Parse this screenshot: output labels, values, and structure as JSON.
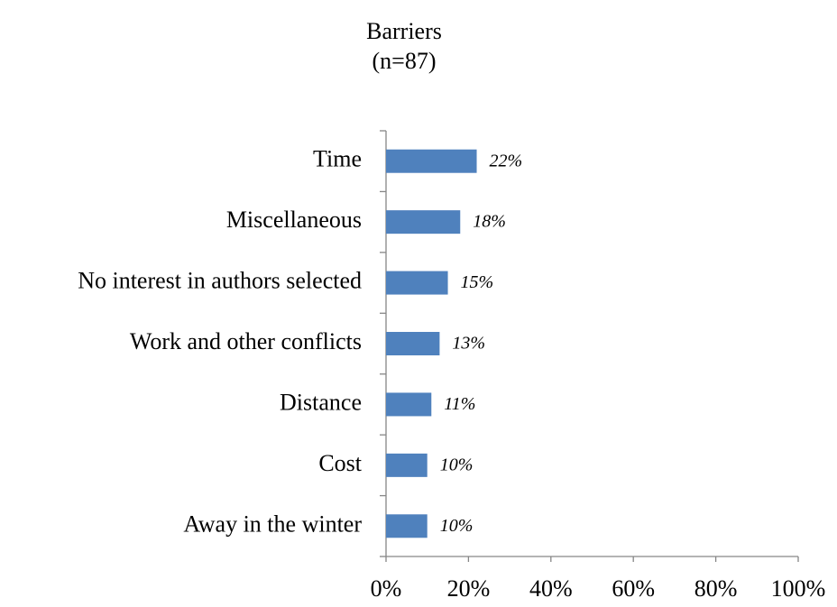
{
  "chart_data": {
    "type": "hbar",
    "title": "Barriers",
    "subtitle": "(n=87)",
    "categories": [
      "Time",
      "Miscellaneous",
      "No interest in authors selected",
      "Work and other conflicts",
      "Distance",
      "Cost",
      "Away in the winter"
    ],
    "values": [
      22,
      18,
      15,
      13,
      11,
      10,
      10
    ],
    "value_labels": [
      "22%",
      "18%",
      "15%",
      "13%",
      "11%",
      "10%",
      "10%"
    ],
    "color": "#4f81bd",
    "xlim": [
      0,
      100
    ],
    "xticks": [
      {
        "value": 0,
        "label": "0%"
      },
      {
        "value": 20,
        "label": "20%"
      },
      {
        "value": 40,
        "label": "40%"
      },
      {
        "value": 60,
        "label": "60%"
      },
      {
        "value": 80,
        "label": "80%"
      },
      {
        "value": 100,
        "label": "100%"
      }
    ],
    "grid": false
  }
}
